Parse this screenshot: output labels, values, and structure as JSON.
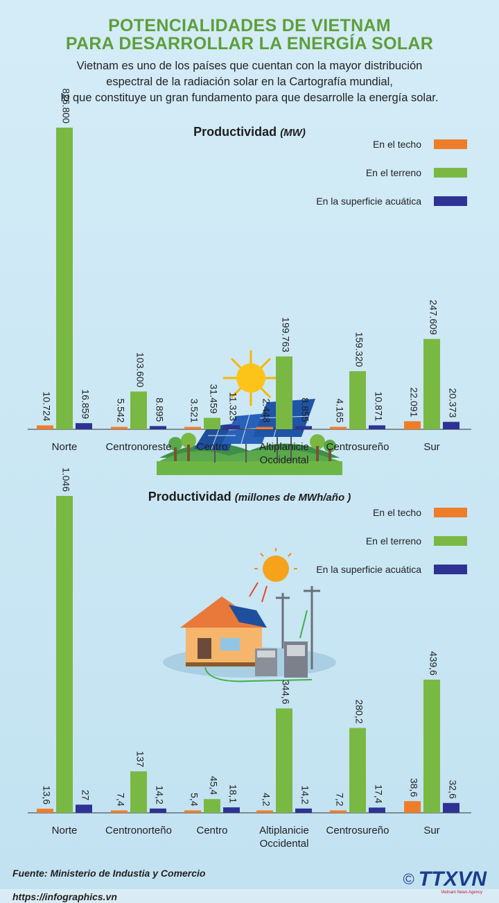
{
  "header": {
    "title_line1": "POTENCIALIDADES DE VIETNAM",
    "title_line2": "PARA DESARROLLAR LA ENERGÍA SOLAR",
    "intro_line1": "Vietnam es uno de los países que cuentan con la mayor distribución",
    "intro_line2": "espectral de la radiación solar en la Cartografía mundial,",
    "intro_line3": "lo que constituye un gran fundamento para que desarrolle la energía solar."
  },
  "legend": {
    "techo": "En el techo",
    "terreno": "En el terreno",
    "acuatica": "En la superficie acuática"
  },
  "colors": {
    "techo": "#ee7d2a",
    "terreno": "#79b943",
    "acuatica": "#2e3393"
  },
  "chart_data": [
    {
      "type": "bar",
      "title": "Productividad",
      "unit": "(MW)",
      "categories": [
        [
          "Norte"
        ],
        [
          "Centronoreste"
        ],
        [
          "Centro"
        ],
        [
          "Altiplanicie",
          "Occidental"
        ],
        [
          "Centrosureño"
        ],
        [
          "Sur"
        ]
      ],
      "series": [
        {
          "name": "En el techo",
          "values": [
            10.724,
            5.542,
            3.521,
            2.448,
            4.165,
            22.091
          ],
          "labels": [
            "10.724",
            "5.542",
            "3.521",
            "2.448",
            "4.165",
            "22.091"
          ]
        },
        {
          "name": "En el terreno",
          "values": [
            826.8,
            103.6,
            31.459,
            199.763,
            159.32,
            247.609
          ],
          "labels": [
            "826.800",
            "103.600",
            "31.459",
            "199.763",
            "159.320",
            "247.609"
          ]
        },
        {
          "name": "En la superficie acuática",
          "values": [
            16.859,
            8.895,
            11.323,
            8.855,
            10.871,
            20.373
          ],
          "labels": [
            "16.859",
            "8.895",
            "11.323",
            "8.855",
            "10.871",
            "20.373"
          ]
        }
      ],
      "ylim": [
        0,
        826.8
      ]
    },
    {
      "type": "bar",
      "title": "Productividad",
      "unit": "(millones de MWh/año )",
      "categories": [
        [
          "Norte"
        ],
        [
          "Centronorteño"
        ],
        [
          "Centro"
        ],
        [
          "Altiplanicie",
          "Occidental"
        ],
        [
          "Centrosureño"
        ],
        [
          "Sur"
        ]
      ],
      "series": [
        {
          "name": "En el techo",
          "values": [
            13.6,
            7.4,
            5.4,
            4.2,
            7.2,
            38.6
          ],
          "labels": [
            "13,6",
            "7,4",
            "5,4",
            "4,2",
            "7,2",
            "38,6"
          ]
        },
        {
          "name": "En el terreno",
          "values": [
            1046,
            137,
            45.4,
            344.6,
            280.2,
            439.6
          ],
          "labels": [
            "1.046",
            "137",
            "45,4",
            "344,6",
            "280,2",
            "439,6"
          ]
        },
        {
          "name": "En la superficie acuática",
          "values": [
            27,
            14.2,
            18.1,
            14.2,
            17.4,
            32.6
          ],
          "labels": [
            "27",
            "14,2",
            "18,1",
            "14,2",
            "17,4",
            "32,6"
          ]
        }
      ],
      "ylim": [
        0,
        1046
      ]
    }
  ],
  "footer": {
    "source": "Fuente: Ministerio de Industia y Comercio",
    "url": "https://infographics.vn",
    "logo_symbol": "©",
    "logo_text": "TTXVN",
    "logo_sub": "Vietnam News Agency"
  }
}
